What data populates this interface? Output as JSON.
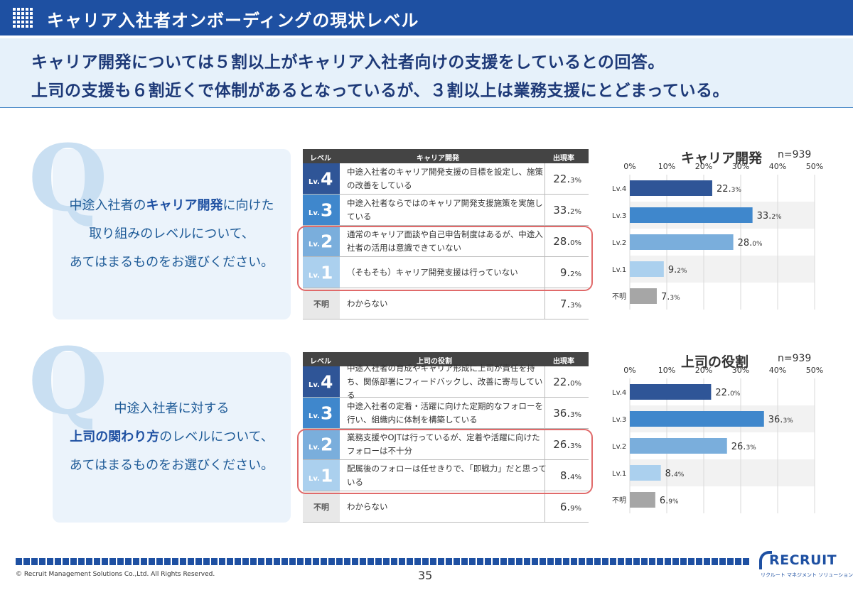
{
  "header": {
    "title": "キャリア入社者オンボーディングの現状レベル",
    "icon": "grid-icon"
  },
  "lead": {
    "line1": "キャリア開発については５割以上がキャリア入社者向けの支援をしているとの回答。",
    "line2": "上司の支援も６割近くで体制があるとなっているが、３割以上は業務支援にとどまっている。"
  },
  "sections": [
    {
      "q_letter": "Q",
      "question": {
        "pre": "中途入社者の",
        "emph": "キャリア開発",
        "post": "に向けた",
        "line2": "取り組みのレベルについて、",
        "line3": "あてはまるものをお選びください。"
      },
      "table": {
        "col_level": "レベル",
        "col_topic": "キャリア開発",
        "col_rate": "出現率",
        "rows": [
          {
            "lv": "Lv.",
            "num": "4",
            "color": "#2f5597",
            "desc": "中途入社者のキャリア開発支援の目標を設定し、施策の改善をしている",
            "rate": "22.",
            "pct": "3%"
          },
          {
            "lv": "Lv.",
            "num": "3",
            "color": "#3f87cc",
            "desc": "中途入社者ならではのキャリア開発支援施策を実施している",
            "rate": "33.",
            "pct": "2%"
          },
          {
            "lv": "Lv.",
            "num": "2",
            "color": "#7aaedc",
            "desc": "通常のキャリア面談や自己申告制度はあるが、中途入社者の活用は意識できていない",
            "rate": "28.",
            "pct": "0%"
          },
          {
            "lv": "Lv.",
            "num": "1",
            "color": "#abd0ee",
            "desc": "（そもそも）キャリア開発支援は行っていない",
            "rate": "9.",
            "pct": "2%"
          },
          {
            "na": "不明",
            "desc": "わからない",
            "rate": "7.",
            "pct": "3%"
          }
        ]
      },
      "chart_data": {
        "type": "bar",
        "orientation": "horizontal",
        "title": "キャリア開発",
        "n_label": "n=939",
        "categories": [
          "Lv.4",
          "Lv.3",
          "Lv.2",
          "Lv.1",
          "不明"
        ],
        "values": [
          22.3,
          33.2,
          28.0,
          9.2,
          7.3
        ],
        "value_labels": [
          [
            "22.",
            "3%"
          ],
          [
            "33.",
            "2%"
          ],
          [
            "28.",
            "0%"
          ],
          [
            "9.",
            "2%"
          ],
          [
            "7.",
            "3%"
          ]
        ],
        "colors": [
          "#2f5597",
          "#3f87cc",
          "#7aaedc",
          "#abd0ee",
          "#a6a6a6"
        ],
        "xlim": [
          0,
          50
        ],
        "ticks": [
          "0%",
          "10%",
          "20%",
          "30%",
          "40%",
          "50%"
        ],
        "grid": true
      }
    },
    {
      "q_letter": "Q",
      "question": {
        "pre0": "中途入社者に対する",
        "emph": "上司の関わり方",
        "post": "のレベルについて、",
        "line3": "あてはまるものをお選びください。"
      },
      "table": {
        "col_level": "レベル",
        "col_topic": "上司の役割",
        "col_rate": "出現率",
        "rows": [
          {
            "lv": "Lv.",
            "num": "4",
            "color": "#2f5597",
            "desc": "中途入社者の育成やキャリア形成に上司が責任を持ち、関係部署にフィードバックし、改善に寄与している",
            "rate": "22.",
            "pct": "0%"
          },
          {
            "lv": "Lv.",
            "num": "3",
            "color": "#3f87cc",
            "desc": "中途入社者の定着・活躍に向けた定期的なフォローを行い、組織内に体制を構築している",
            "rate": "36.",
            "pct": "3%"
          },
          {
            "lv": "Lv.",
            "num": "2",
            "color": "#7aaedc",
            "desc": "業務支援やOJTは行っているが、定着や活躍に向けたフォローは不十分",
            "rate": "26.",
            "pct": "3%"
          },
          {
            "lv": "Lv.",
            "num": "1",
            "color": "#abd0ee",
            "desc": "配属後のフォローは任せきりで、「即戦力」だと思っている",
            "rate": "8.",
            "pct": "4%"
          },
          {
            "na": "不明",
            "desc": "わからない",
            "rate": "6.",
            "pct": "9%"
          }
        ]
      },
      "chart_data": {
        "type": "bar",
        "orientation": "horizontal",
        "title": "上司の役割",
        "n_label": "n=939",
        "categories": [
          "Lv.4",
          "Lv.3",
          "Lv.2",
          "Lv.1",
          "不明"
        ],
        "values": [
          22.0,
          36.3,
          26.3,
          8.4,
          6.9
        ],
        "value_labels": [
          [
            "22.",
            "0%"
          ],
          [
            "36.",
            "3%"
          ],
          [
            "26.",
            "3%"
          ],
          [
            "8.",
            "4%"
          ],
          [
            "6.",
            "9%"
          ]
        ],
        "colors": [
          "#2f5597",
          "#3f87cc",
          "#7aaedc",
          "#abd0ee",
          "#a6a6a6"
        ],
        "xlim": [
          0,
          50
        ],
        "ticks": [
          "0%",
          "10%",
          "20%",
          "30%",
          "40%",
          "50%"
        ],
        "grid": true
      }
    }
  ],
  "footer": {
    "copyright": "© Recruit Management Solutions Co.,Ltd. All Rights Reserved.",
    "page": "35",
    "logo_word": "RECRUIT",
    "logo_sub": "リクルート マネジメント ソリューションズ"
  }
}
